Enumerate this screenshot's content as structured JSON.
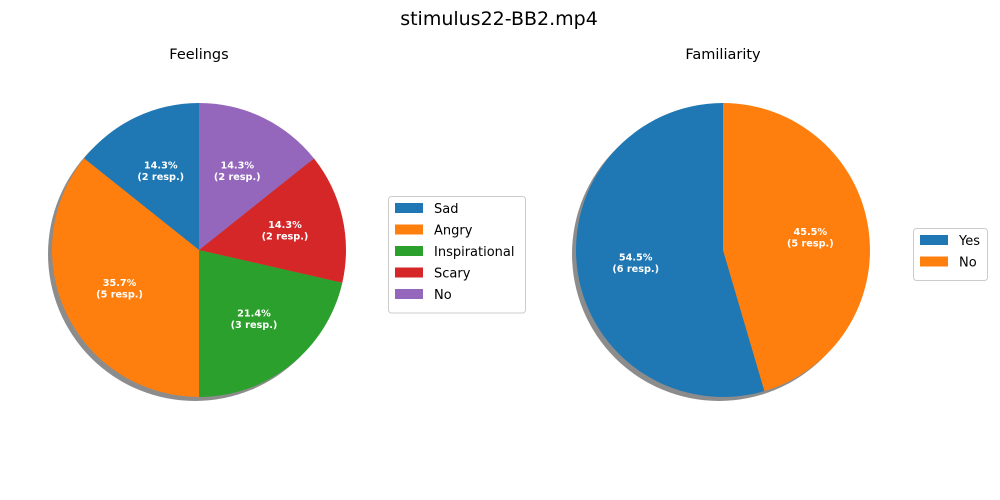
{
  "figure_title": "stimulus22-BB2.mp4",
  "chart_data": [
    {
      "type": "pie",
      "title": "Feelings",
      "start_angle_deg": 90,
      "direction": "counterclockwise",
      "shadow": true,
      "legend_position": "right",
      "slices": [
        {
          "label": "Sad",
          "count": 2,
          "percent": 14.3,
          "text": "14.3%\n(2 resp.)",
          "color": "#1f77b4"
        },
        {
          "label": "Angry",
          "count": 5,
          "percent": 35.7,
          "text": "35.7%\n(5 resp.)",
          "color": "#ff7f0e"
        },
        {
          "label": "Inspirational",
          "count": 3,
          "percent": 21.4,
          "text": "21.4%\n(3 resp.)",
          "color": "#2ca02c"
        },
        {
          "label": "Scary",
          "count": 2,
          "percent": 14.3,
          "text": "14.3%\n(2 resp.)",
          "color": "#d62728"
        },
        {
          "label": "No",
          "count": 2,
          "percent": 14.3,
          "text": "14.3%\n(2 resp.)",
          "color": "#9467bd"
        }
      ]
    },
    {
      "type": "pie",
      "title": "Familiarity",
      "start_angle_deg": 90,
      "direction": "counterclockwise",
      "shadow": true,
      "legend_position": "right",
      "slices": [
        {
          "label": "Yes",
          "count": 6,
          "percent": 54.5,
          "text": "54.5%\n(6 resp.)",
          "color": "#1f77b4"
        },
        {
          "label": "No",
          "count": 5,
          "percent": 45.5,
          "text": "45.5%\n(5 resp.)",
          "color": "#ff7f0e"
        }
      ]
    }
  ]
}
